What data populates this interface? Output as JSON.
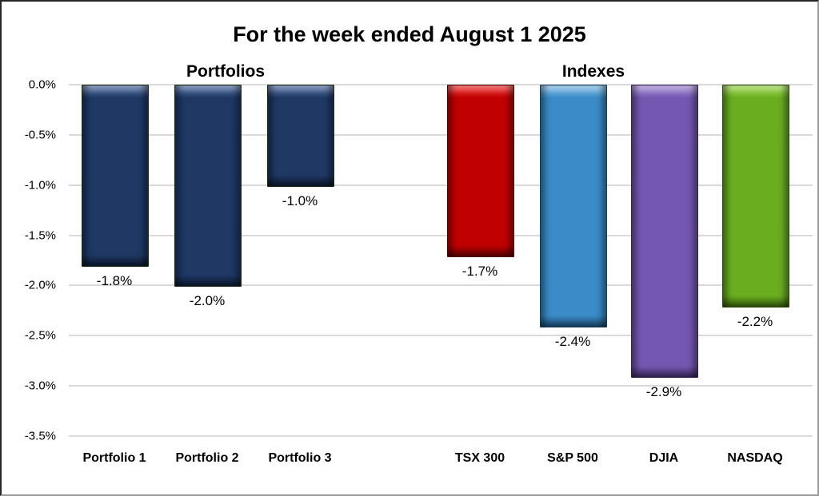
{
  "chart_data": {
    "type": "bar",
    "title": "For the week ended August 1 2025",
    "groups": [
      {
        "label": "Portfolios"
      },
      {
        "label": "Indexes"
      }
    ],
    "categories": [
      "Portfolio 1",
      "Portfolio 2",
      "Portfolio 3",
      "TSX 300",
      "S&P 500",
      "DJIA",
      "NASDAQ"
    ],
    "values": [
      -1.8,
      -2.0,
      -1.0,
      -1.7,
      -2.4,
      -2.9,
      -2.2
    ],
    "data_labels": [
      "-1.8%",
      "-2.0%",
      "-1.0%",
      "-1.7%",
      "-2.4%",
      "-2.9%",
      "-2.2%"
    ],
    "bar_colors": [
      {
        "base": "#1f3864",
        "light": "#3a5a96",
        "dark": "#101f3d",
        "edge": "#1b2a12"
      },
      {
        "base": "#1f3864",
        "light": "#3a5a96",
        "dark": "#101f3d",
        "edge": "#1b2a12"
      },
      {
        "base": "#1f3864",
        "light": "#3a5a96",
        "dark": "#101f3d",
        "edge": "#1b2a12"
      },
      {
        "base": "#c00000",
        "light": "#ee1c1c",
        "dark": "#7c0000",
        "edge": "#4d0000"
      },
      {
        "base": "#3a8bc8",
        "light": "#6fb2e2",
        "dark": "#215a86",
        "edge": "#173c5a"
      },
      {
        "base": "#7457b0",
        "light": "#977dd2",
        "dark": "#4a3577",
        "edge": "#32234f"
      },
      {
        "base": "#6aae20",
        "light": "#8ed23a",
        "dark": "#43720f",
        "edge": "#2c4a0a"
      }
    ],
    "xlabel": "",
    "ylabel": "",
    "ylim": [
      -3.5,
      0
    ],
    "ytick_step": 0.5,
    "ytick_labels": [
      "0.0%",
      "-0.5%",
      "-1.0%",
      "-1.5%",
      "-2.0%",
      "-2.5%",
      "-3.0%",
      "-3.5%"
    ],
    "grid": true,
    "legend": "none"
  }
}
